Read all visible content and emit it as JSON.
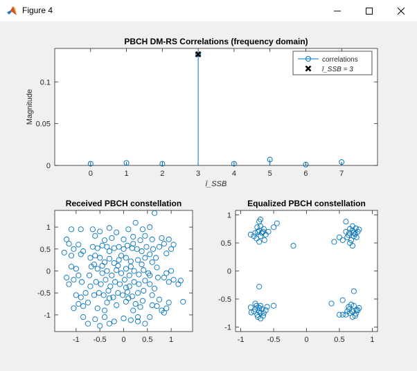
{
  "window": {
    "title": "Figure 4",
    "icon": "matlab-icon",
    "controls": [
      "minimize-icon",
      "maximize-icon",
      "close-icon"
    ]
  },
  "chart_data": [
    {
      "type": "stem",
      "title": "PBCH DM-RS Correlations (frequency domain)",
      "xlabel": "ī_SSB",
      "ylabel": "Magnitude",
      "xlim": [
        -1,
        8
      ],
      "ylim": [
        0,
        0.14
      ],
      "xticks": [
        0,
        1,
        2,
        3,
        4,
        5,
        6,
        7
      ],
      "xtick_labels": [
        "0",
        "1",
        "2",
        "3",
        "4",
        "5",
        "6",
        "7"
      ],
      "yticks": [
        0,
        0.05,
        0.1
      ],
      "ytick_labels": [
        "0",
        "0.05",
        "0.1"
      ],
      "grid": false,
      "legend_position": "top-right",
      "series": [
        {
          "name": "correlations",
          "marker": "circle",
          "color": "#0072bd",
          "x": [
            0,
            1,
            2,
            3,
            4,
            5,
            6,
            7
          ],
          "values": [
            0.002,
            0.003,
            0.002,
            0.133,
            0.002,
            0.007,
            0.001,
            0.004
          ]
        },
        {
          "name": "ī_SSB = 3",
          "marker": "x",
          "color": "#000000",
          "x": [
            3
          ],
          "values": [
            0.133
          ]
        }
      ]
    },
    {
      "type": "scatter",
      "title": "Received PBCH constellation",
      "xlim": [
        -1.45,
        1.45
      ],
      "ylim": [
        -1.38,
        1.38
      ],
      "xticks": [
        -1,
        -0.5,
        0,
        0.5,
        1
      ],
      "xtick_labels": [
        "-1",
        "-0.5",
        "0",
        "0.5",
        "1"
      ],
      "yticks": [
        -1,
        -0.5,
        0,
        0.5,
        1
      ],
      "ytick_labels": [
        "-1",
        "-0.5",
        "0",
        "0.5",
        "1"
      ],
      "grid": false,
      "color": "#0072bd",
      "marker": "circle",
      "points": [
        [
          -0.55,
          0.52
        ],
        [
          -0.45,
          0.58
        ],
        [
          -0.35,
          0.55
        ],
        [
          -0.3,
          0.45
        ],
        [
          -0.2,
          0.52
        ],
        [
          -0.1,
          0.55
        ],
        [
          0.0,
          0.5
        ],
        [
          0.08,
          0.58
        ],
        [
          0.18,
          0.52
        ],
        [
          0.28,
          0.5
        ],
        [
          0.38,
          0.45
        ],
        [
          0.48,
          0.55
        ],
        [
          -0.6,
          0.35
        ],
        [
          -0.5,
          0.3
        ],
        [
          -0.4,
          0.2
        ],
        [
          -0.3,
          0.28
        ],
        [
          -0.2,
          0.18
        ],
        [
          -0.1,
          0.25
        ],
        [
          0.05,
          0.3
        ],
        [
          0.15,
          0.22
        ],
        [
          0.3,
          0.25
        ],
        [
          0.45,
          0.3
        ],
        [
          0.55,
          0.38
        ],
        [
          0.6,
          0.2
        ],
        [
          -0.55,
          0.05
        ],
        [
          -0.45,
          -0.05
        ],
        [
          -0.35,
          0.0
        ],
        [
          -0.25,
          -0.1
        ],
        [
          -0.15,
          0.02
        ],
        [
          -0.05,
          -0.05
        ],
        [
          0.05,
          0.05
        ],
        [
          0.12,
          -0.1
        ],
        [
          0.22,
          0.0
        ],
        [
          0.32,
          -0.08
        ],
        [
          0.42,
          0.02
        ],
        [
          0.52,
          -0.05
        ],
        [
          -0.58,
          -0.25
        ],
        [
          -0.48,
          -0.3
        ],
        [
          -0.38,
          -0.2
        ],
        [
          -0.28,
          -0.35
        ],
        [
          -0.18,
          -0.25
        ],
        [
          -0.08,
          -0.3
        ],
        [
          0.02,
          -0.2
        ],
        [
          0.12,
          -0.35
        ],
        [
          0.22,
          -0.25
        ],
        [
          0.32,
          -0.3
        ],
        [
          0.45,
          -0.22
        ],
        [
          0.55,
          -0.3
        ],
        [
          -0.52,
          -0.5
        ],
        [
          -0.42,
          -0.55
        ],
        [
          -0.32,
          -0.45
        ],
        [
          -0.22,
          -0.6
        ],
        [
          -0.12,
          -0.5
        ],
        [
          -0.02,
          -0.55
        ],
        [
          0.08,
          -0.48
        ],
        [
          0.18,
          -0.58
        ],
        [
          0.3,
          -0.5
        ],
        [
          0.42,
          -0.45
        ],
        [
          -0.65,
          0.55
        ],
        [
          -0.7,
          0.3
        ],
        [
          -0.68,
          0.1
        ],
        [
          -0.72,
          -0.1
        ],
        [
          -0.7,
          -0.35
        ],
        [
          -0.62,
          -0.55
        ],
        [
          0.62,
          0.5
        ],
        [
          0.68,
          0.3
        ],
        [
          0.7,
          0.08
        ],
        [
          0.72,
          -0.15
        ],
        [
          0.65,
          -0.4
        ],
        [
          0.6,
          -0.55
        ],
        [
          -0.4,
          0.7
        ],
        [
          -0.25,
          0.75
        ],
        [
          0.0,
          0.72
        ],
        [
          0.2,
          0.78
        ],
        [
          0.35,
          0.7
        ],
        [
          -0.35,
          -0.72
        ],
        [
          -0.15,
          -0.78
        ],
        [
          0.05,
          -0.7
        ],
        [
          0.25,
          -0.75
        ],
        [
          0.4,
          -0.68
        ],
        [
          -1.2,
          0.72
        ],
        [
          -1.15,
          0.62
        ],
        [
          -1.05,
          0.5
        ],
        [
          -0.95,
          0.6
        ],
        [
          -1.25,
          0.42
        ],
        [
          -0.9,
          0.38
        ],
        [
          -1.1,
          0.35
        ],
        [
          -0.85,
          0.45
        ],
        [
          -1.2,
          -0.15
        ],
        [
          -1.05,
          -0.2
        ],
        [
          -0.95,
          -0.1
        ],
        [
          -1.15,
          -0.3
        ],
        [
          -0.88,
          -0.25
        ],
        [
          -1.0,
          0.05
        ],
        [
          -1.1,
          0.1
        ],
        [
          -1.05,
          -0.85
        ],
        [
          -0.95,
          -0.75
        ],
        [
          -0.85,
          -0.8
        ],
        [
          -0.75,
          -0.72
        ],
        [
          -0.9,
          -0.6
        ],
        [
          -0.8,
          -0.5
        ],
        [
          -1.0,
          -0.55
        ],
        [
          0.95,
          0.72
        ],
        [
          0.85,
          0.62
        ],
        [
          1.0,
          0.5
        ],
        [
          0.9,
          0.4
        ],
        [
          0.75,
          0.55
        ],
        [
          1.05,
          0.6
        ],
        [
          0.8,
          0.75
        ],
        [
          1.05,
          -0.2
        ],
        [
          0.95,
          -0.25
        ],
        [
          1.15,
          -0.3
        ],
        [
          0.85,
          -0.15
        ],
        [
          1.2,
          -0.22
        ],
        [
          0.9,
          -0.05
        ],
        [
          1.0,
          0.0
        ],
        [
          0.9,
          -0.85
        ],
        [
          0.95,
          -0.72
        ],
        [
          0.8,
          -0.9
        ],
        [
          0.7,
          -0.8
        ],
        [
          0.85,
          -0.95
        ],
        [
          0.6,
          -0.78
        ],
        [
          0.75,
          -0.65
        ],
        [
          -0.85,
          -1.05
        ],
        [
          -0.75,
          -1.2
        ],
        [
          -0.6,
          -1.1
        ],
        [
          -0.5,
          -1.25
        ],
        [
          -0.4,
          -1.05
        ],
        [
          -0.3,
          -1.2
        ],
        [
          -0.2,
          -1.15
        ],
        [
          0.3,
          -1.15
        ],
        [
          0.45,
          -1.2
        ],
        [
          0.55,
          -1.05
        ],
        [
          0.3,
          -1.05
        ],
        [
          0.15,
          -1.12
        ],
        [
          0.0,
          -1.08
        ],
        [
          -0.65,
          0.95
        ],
        [
          -0.5,
          0.9
        ],
        [
          -0.6,
          0.8
        ],
        [
          -0.3,
          0.98
        ],
        [
          -0.15,
          0.88
        ],
        [
          0.25,
          1.1
        ],
        [
          0.4,
          0.95
        ],
        [
          0.55,
          1.0
        ],
        [
          0.65,
          1.32
        ],
        [
          0.45,
          0.8
        ],
        [
          0.1,
          0.95
        ],
        [
          -0.55,
          -0.85
        ],
        [
          -0.4,
          -0.9
        ],
        [
          0.2,
          -0.9
        ],
        [
          0.35,
          -0.82
        ],
        [
          1.25,
          -0.7
        ],
        [
          -1.1,
          0.95
        ],
        [
          -0.9,
          0.95
        ],
        [
          0.15,
          0.1
        ],
        [
          -0.12,
          0.12
        ],
        [
          0.38,
          0.15
        ],
        [
          -0.45,
          0.12
        ],
        [
          0.6,
          0.72
        ],
        [
          -0.62,
          0.15
        ],
        [
          0.55,
          -0.1
        ],
        [
          -0.3,
          -0.62
        ],
        [
          0.1,
          -0.62
        ],
        [
          0.2,
          0.62
        ],
        [
          -0.05,
          0.35
        ],
        [
          0.05,
          -0.38
        ]
      ]
    },
    {
      "type": "scatter",
      "title": "Equalized PBCH constellation",
      "xlim": [
        -1.08,
        1.08
      ],
      "ylim": [
        -1.08,
        1.08
      ],
      "xticks": [
        -1,
        -0.5,
        0,
        0.5,
        1
      ],
      "xtick_labels": [
        "-1",
        "-0.5",
        "0",
        "0.5",
        "1"
      ],
      "yticks": [
        -1,
        -0.5,
        0,
        0.5,
        1
      ],
      "ytick_labels": [
        "-1",
        "-0.5",
        "0",
        "0.5",
        "1"
      ],
      "grid": false,
      "color": "#0072bd",
      "marker": "circle",
      "points": [
        [
          -0.72,
          0.72
        ],
        [
          -0.68,
          0.68
        ],
        [
          -0.75,
          0.78
        ],
        [
          -0.7,
          0.62
        ],
        [
          -0.78,
          0.68
        ],
        [
          -0.65,
          0.75
        ],
        [
          -0.72,
          0.88
        ],
        [
          -0.8,
          0.62
        ],
        [
          -0.62,
          0.65
        ],
        [
          -0.7,
          0.8
        ],
        [
          -0.76,
          0.58
        ],
        [
          -0.66,
          0.7
        ],
        [
          -0.74,
          0.7
        ],
        [
          -0.58,
          0.7
        ],
        [
          -0.85,
          0.65
        ],
        [
          -0.72,
          0.52
        ],
        [
          -0.64,
          0.55
        ],
        [
          -0.5,
          0.78
        ],
        [
          -0.45,
          0.85
        ],
        [
          -0.7,
          0.92
        ],
        [
          0.7,
          0.72
        ],
        [
          0.65,
          0.68
        ],
        [
          0.75,
          0.76
        ],
        [
          0.72,
          0.62
        ],
        [
          0.78,
          0.7
        ],
        [
          0.66,
          0.75
        ],
        [
          0.62,
          0.6
        ],
        [
          0.74,
          0.66
        ],
        [
          0.68,
          0.55
        ],
        [
          0.8,
          0.74
        ],
        [
          0.7,
          0.8
        ],
        [
          0.6,
          0.7
        ],
        [
          0.76,
          0.6
        ],
        [
          0.64,
          0.64
        ],
        [
          0.72,
          0.68
        ],
        [
          0.66,
          0.5
        ],
        [
          0.6,
          0.88
        ],
        [
          0.7,
          0.45
        ],
        [
          0.55,
          0.55
        ],
        [
          0.5,
          0.6
        ],
        [
          -0.72,
          -0.72
        ],
        [
          -0.68,
          -0.68
        ],
        [
          -0.75,
          -0.78
        ],
        [
          -0.7,
          -0.62
        ],
        [
          -0.78,
          -0.68
        ],
        [
          -0.65,
          -0.75
        ],
        [
          -0.8,
          -0.72
        ],
        [
          -0.74,
          -0.82
        ],
        [
          -0.7,
          -0.75
        ],
        [
          -0.62,
          -0.7
        ],
        [
          -0.76,
          -0.62
        ],
        [
          -0.66,
          -0.8
        ],
        [
          -0.72,
          -0.66
        ],
        [
          -0.84,
          -0.74
        ],
        [
          -0.6,
          -0.64
        ],
        [
          -0.7,
          -0.85
        ],
        [
          -0.78,
          -0.58
        ],
        [
          -0.85,
          -0.65
        ],
        [
          -0.72,
          -0.28
        ],
        [
          -0.5,
          -0.62
        ],
        [
          0.7,
          -0.72
        ],
        [
          0.65,
          -0.68
        ],
        [
          0.75,
          -0.76
        ],
        [
          0.72,
          -0.62
        ],
        [
          0.78,
          -0.7
        ],
        [
          0.66,
          -0.75
        ],
        [
          0.62,
          -0.72
        ],
        [
          0.74,
          -0.8
        ],
        [
          0.68,
          -0.6
        ],
        [
          0.8,
          -0.66
        ],
        [
          0.7,
          -0.82
        ],
        [
          0.6,
          -0.78
        ],
        [
          0.76,
          -0.7
        ],
        [
          0.64,
          -0.64
        ],
        [
          0.72,
          -0.36
        ],
        [
          0.55,
          -0.52
        ],
        [
          0.55,
          -0.78
        ],
        [
          0.38,
          -0.58
        ],
        [
          0.5,
          -0.78
        ],
        [
          -0.2,
          0.45
        ],
        [
          0.42,
          0.52
        ]
      ]
    }
  ]
}
